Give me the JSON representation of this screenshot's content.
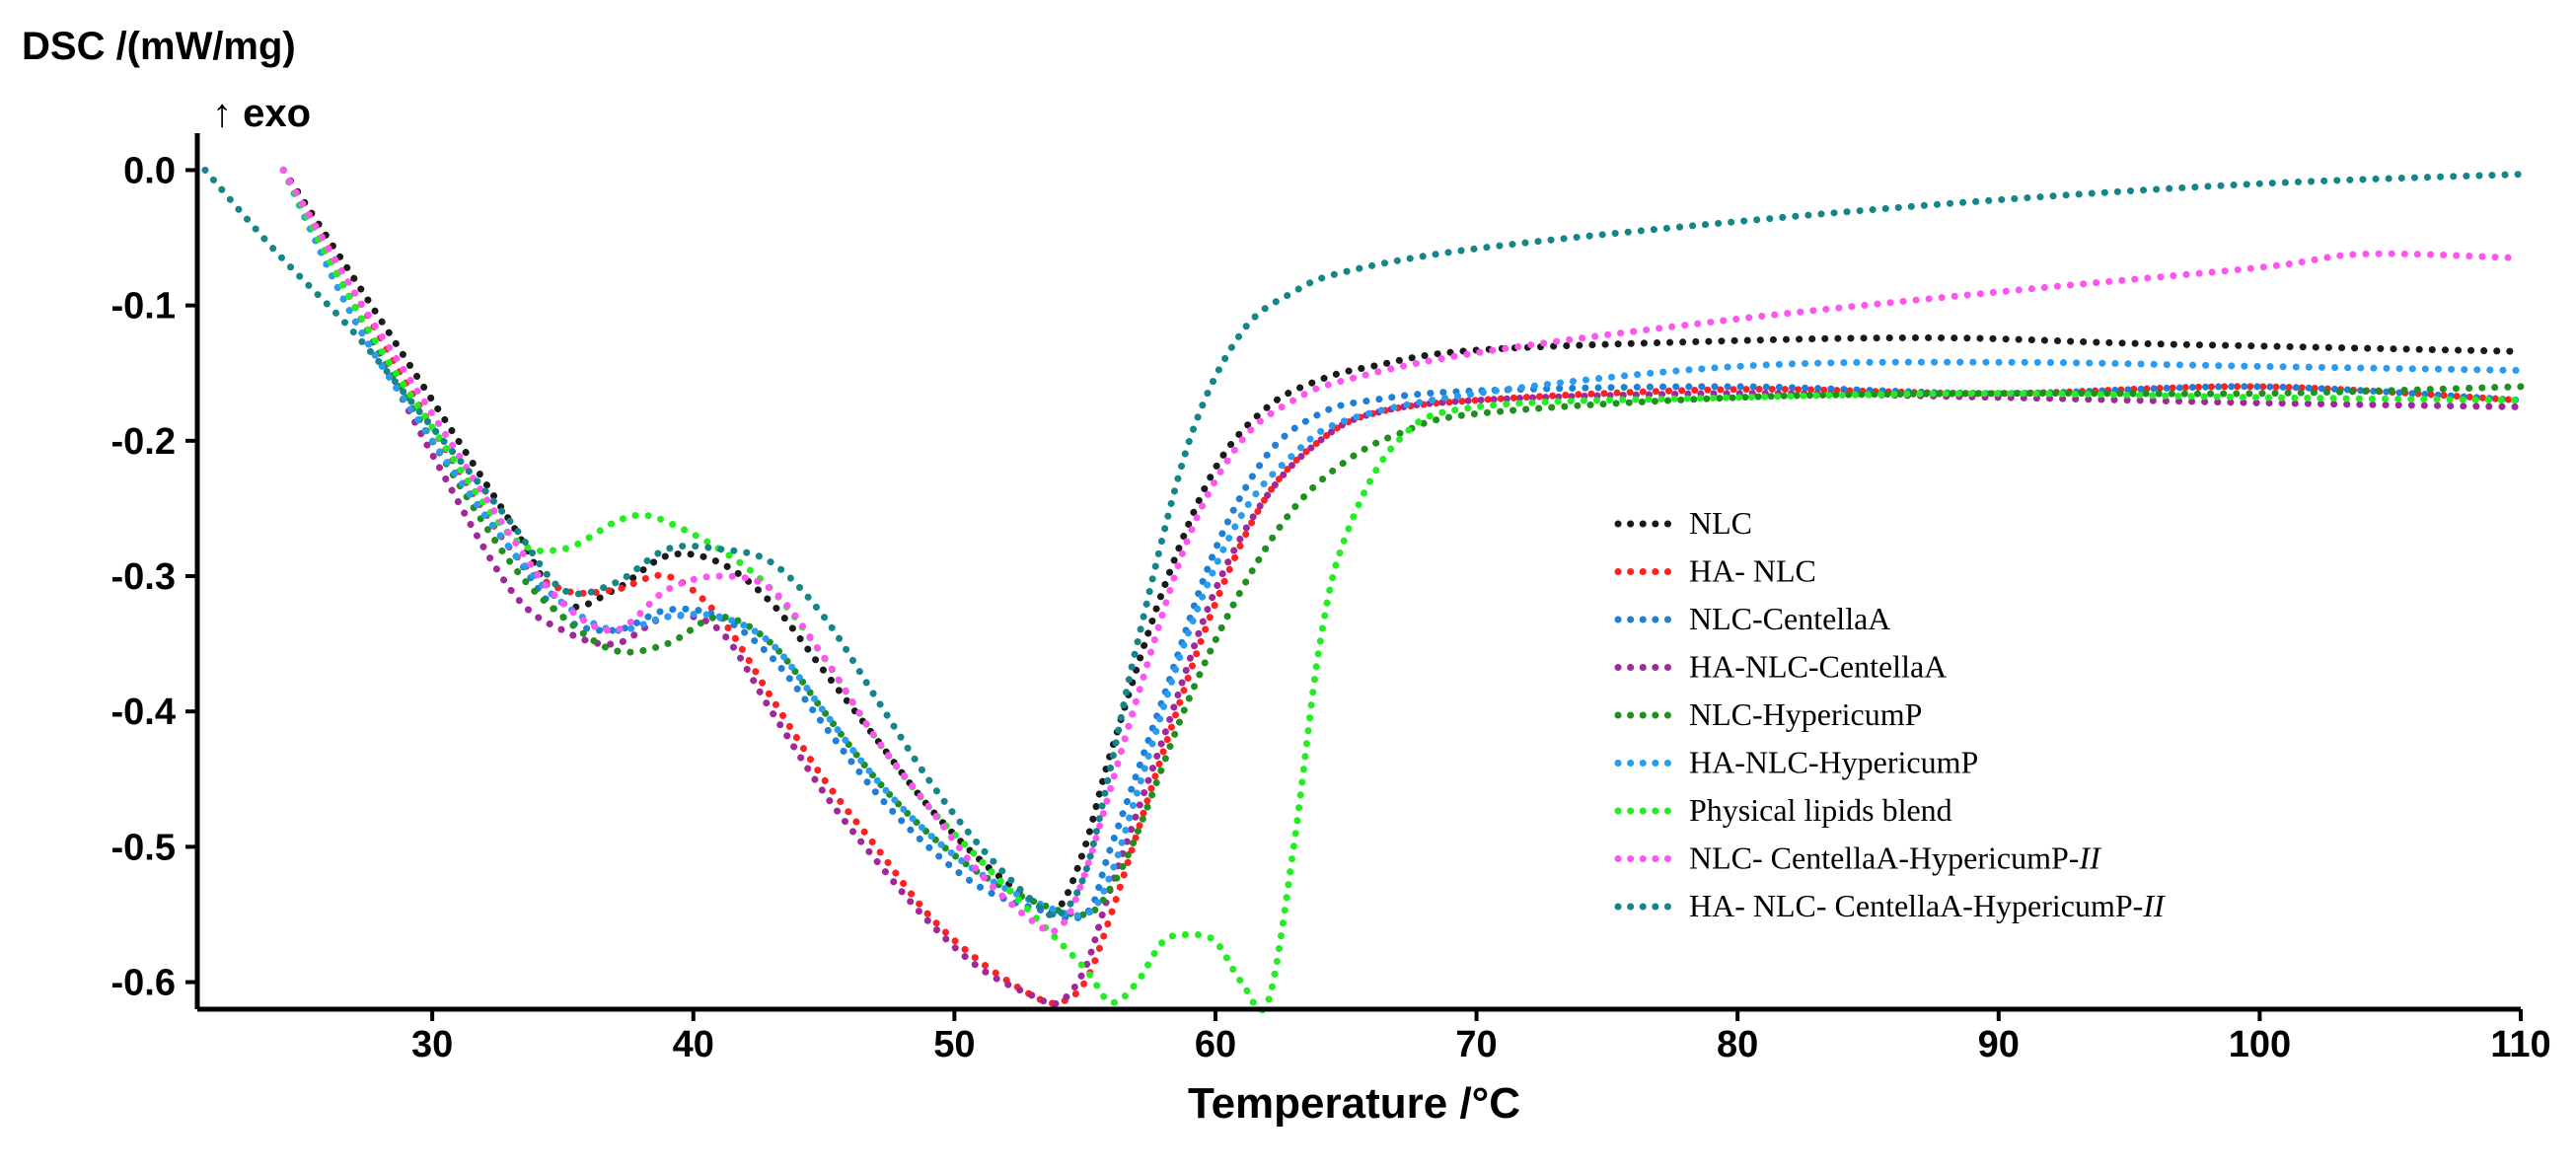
{
  "chart_data": {
    "type": "line",
    "ylabel": "DSC /(mW/mg)",
    "ylabel_sub": "↑ exo",
    "xlabel": "Temperature /°C",
    "xlim": [
      21,
      110
    ],
    "ylim": [
      -0.62,
      0.02
    ],
    "xticks": [
      30,
      40,
      50,
      60,
      70,
      80,
      90,
      100,
      110
    ],
    "yticks": [
      0.0,
      -0.1,
      -0.2,
      -0.3,
      -0.4,
      -0.5,
      -0.6
    ],
    "ytick_labels": [
      "0.0",
      "-0.1",
      "-0.2",
      "-0.3",
      "-0.4",
      "-0.5",
      "-0.6"
    ],
    "legend_position": "center-right",
    "series": [
      {
        "name": "NLC",
        "color": "#1a1a1a",
        "x": [
          24.3,
          27,
          30,
          33,
          35,
          37,
          39,
          41,
          43,
          45,
          47,
          49,
          51,
          53,
          54,
          55,
          56,
          58,
          60,
          62,
          64,
          66,
          70,
          80,
          88,
          95,
          100,
          110
        ],
        "y": [
          0.0,
          -0.08,
          -0.17,
          -0.26,
          -0.32,
          -0.31,
          -0.285,
          -0.29,
          -0.32,
          -0.37,
          -0.42,
          -0.47,
          -0.51,
          -0.54,
          -0.545,
          -0.5,
          -0.43,
          -0.31,
          -0.22,
          -0.175,
          -0.155,
          -0.145,
          -0.133,
          -0.126,
          -0.124,
          -0.128,
          -0.13,
          -0.134
        ]
      },
      {
        "name": "HA- NLC",
        "color": "#ff2020",
        "x": [
          24.3,
          27,
          30,
          33,
          35,
          37,
          39,
          41,
          43,
          45,
          47,
          49,
          51,
          53,
          54,
          55,
          56,
          58,
          60,
          62,
          64,
          66,
          70,
          80,
          90,
          100,
          110
        ],
        "y": [
          0.0,
          -0.09,
          -0.19,
          -0.28,
          -0.31,
          -0.31,
          -0.3,
          -0.33,
          -0.39,
          -0.45,
          -0.5,
          -0.55,
          -0.585,
          -0.61,
          -0.615,
          -0.6,
          -0.55,
          -0.43,
          -0.32,
          -0.24,
          -0.2,
          -0.18,
          -0.17,
          -0.162,
          -0.165,
          -0.16,
          -0.17
        ]
      },
      {
        "name": "NLC-CentellaA",
        "color": "#1e7fd6",
        "x": [
          24.3,
          27,
          30,
          33,
          35,
          37,
          39,
          41,
          43,
          45,
          47,
          49,
          51,
          53,
          55,
          56,
          58,
          60,
          62,
          64,
          66,
          70,
          80,
          90,
          100,
          110
        ],
        "y": [
          0.0,
          -0.11,
          -0.2,
          -0.28,
          -0.33,
          -0.34,
          -0.325,
          -0.33,
          -0.36,
          -0.41,
          -0.46,
          -0.5,
          -0.53,
          -0.545,
          -0.55,
          -0.5,
          -0.39,
          -0.28,
          -0.21,
          -0.18,
          -0.17,
          -0.163,
          -0.16,
          -0.165,
          -0.16,
          -0.17
        ]
      },
      {
        "name": "HA-NLC-CentellaA",
        "color": "#a0289a",
        "x": [
          24.3,
          27,
          30,
          33,
          35,
          37,
          39,
          41,
          43,
          45,
          47,
          49,
          51,
          53,
          54,
          55,
          56,
          58,
          60,
          62,
          64,
          66,
          70,
          80,
          90,
          100,
          110
        ],
        "y": [
          0.0,
          -0.1,
          -0.21,
          -0.31,
          -0.34,
          -0.35,
          -0.33,
          -0.34,
          -0.4,
          -0.46,
          -0.51,
          -0.555,
          -0.59,
          -0.61,
          -0.615,
          -0.59,
          -0.53,
          -0.42,
          -0.31,
          -0.24,
          -0.2,
          -0.18,
          -0.17,
          -0.165,
          -0.168,
          -0.172,
          -0.175
        ]
      },
      {
        "name": "NLC-HypericumP",
        "color": "#1f8f1f",
        "x": [
          24.3,
          27,
          30,
          33,
          35,
          37,
          39,
          41,
          43,
          45,
          47,
          49,
          51,
          53,
          55,
          56,
          57,
          59,
          61,
          63,
          65,
          67,
          70,
          80,
          90,
          100,
          110
        ],
        "y": [
          0.0,
          -0.1,
          -0.2,
          -0.29,
          -0.33,
          -0.355,
          -0.35,
          -0.33,
          -0.35,
          -0.4,
          -0.45,
          -0.49,
          -0.52,
          -0.54,
          -0.55,
          -0.53,
          -0.49,
          -0.39,
          -0.31,
          -0.25,
          -0.215,
          -0.195,
          -0.18,
          -0.168,
          -0.165,
          -0.165,
          -0.16
        ]
      },
      {
        "name": "HA-NLC-HypericumP",
        "color": "#2a9cf0",
        "x": [
          24.3,
          27,
          30,
          33,
          35,
          37,
          39,
          41,
          43,
          45,
          47,
          49,
          51,
          53,
          55,
          56,
          57,
          59,
          61,
          63,
          65,
          70,
          80,
          90,
          100,
          110
        ],
        "y": [
          0.0,
          -0.11,
          -0.2,
          -0.28,
          -0.32,
          -0.34,
          -0.33,
          -0.33,
          -0.35,
          -0.4,
          -0.45,
          -0.49,
          -0.52,
          -0.54,
          -0.55,
          -0.52,
          -0.46,
          -0.34,
          -0.255,
          -0.21,
          -0.185,
          -0.165,
          -0.145,
          -0.142,
          -0.145,
          -0.148
        ]
      },
      {
        "name": "Physical lipids blend",
        "color": "#22ee22",
        "x": [
          24.3,
          27,
          30,
          33,
          35,
          37,
          38,
          39,
          41,
          43,
          45,
          47,
          49,
          51,
          53,
          55,
          56,
          57,
          58,
          59,
          60,
          61,
          62,
          63,
          64,
          65,
          67,
          70,
          80,
          90,
          100,
          110
        ],
        "y": [
          0.0,
          -0.1,
          -0.19,
          -0.27,
          -0.28,
          -0.26,
          -0.255,
          -0.26,
          -0.28,
          -0.31,
          -0.36,
          -0.42,
          -0.47,
          -0.51,
          -0.55,
          -0.59,
          -0.615,
          -0.6,
          -0.57,
          -0.565,
          -0.57,
          -0.6,
          -0.615,
          -0.5,
          -0.35,
          -0.27,
          -0.2,
          -0.175,
          -0.168,
          -0.165,
          -0.168,
          -0.17
        ]
      },
      {
        "name": "NLC- CentellaA-HypericumP-II",
        "color": "#ff55f0",
        "x": [
          24.3,
          27,
          30,
          33,
          35,
          37,
          39,
          41,
          43,
          45,
          47,
          49,
          51,
          53,
          54,
          55,
          57,
          59,
          61,
          63,
          65,
          70,
          80,
          90,
          100,
          104,
          110
        ],
        "y": [
          0.0,
          -0.09,
          -0.18,
          -0.27,
          -0.32,
          -0.34,
          -0.31,
          -0.3,
          -0.31,
          -0.36,
          -0.42,
          -0.47,
          -0.52,
          -0.555,
          -0.56,
          -0.52,
          -0.39,
          -0.27,
          -0.2,
          -0.17,
          -0.155,
          -0.135,
          -0.11,
          -0.09,
          -0.072,
          -0.062,
          -0.065
        ]
      },
      {
        "name": "HA- NLC- CentellaA-HypericumP-II",
        "color": "#14858a",
        "x": [
          21.3,
          24,
          27,
          30,
          33,
          35,
          37,
          39,
          41,
          43,
          45,
          47,
          49,
          51,
          53,
          54,
          55,
          56,
          57,
          59,
          61,
          63,
          65,
          70,
          80,
          90,
          100,
          110
        ],
        "y": [
          0.0,
          -0.06,
          -0.12,
          -0.19,
          -0.26,
          -0.31,
          -0.305,
          -0.28,
          -0.28,
          -0.29,
          -0.33,
          -0.39,
          -0.45,
          -0.5,
          -0.54,
          -0.55,
          -0.52,
          -0.44,
          -0.35,
          -0.2,
          -0.12,
          -0.09,
          -0.075,
          -0.058,
          -0.038,
          -0.022,
          -0.01,
          -0.003
        ]
      }
    ]
  }
}
